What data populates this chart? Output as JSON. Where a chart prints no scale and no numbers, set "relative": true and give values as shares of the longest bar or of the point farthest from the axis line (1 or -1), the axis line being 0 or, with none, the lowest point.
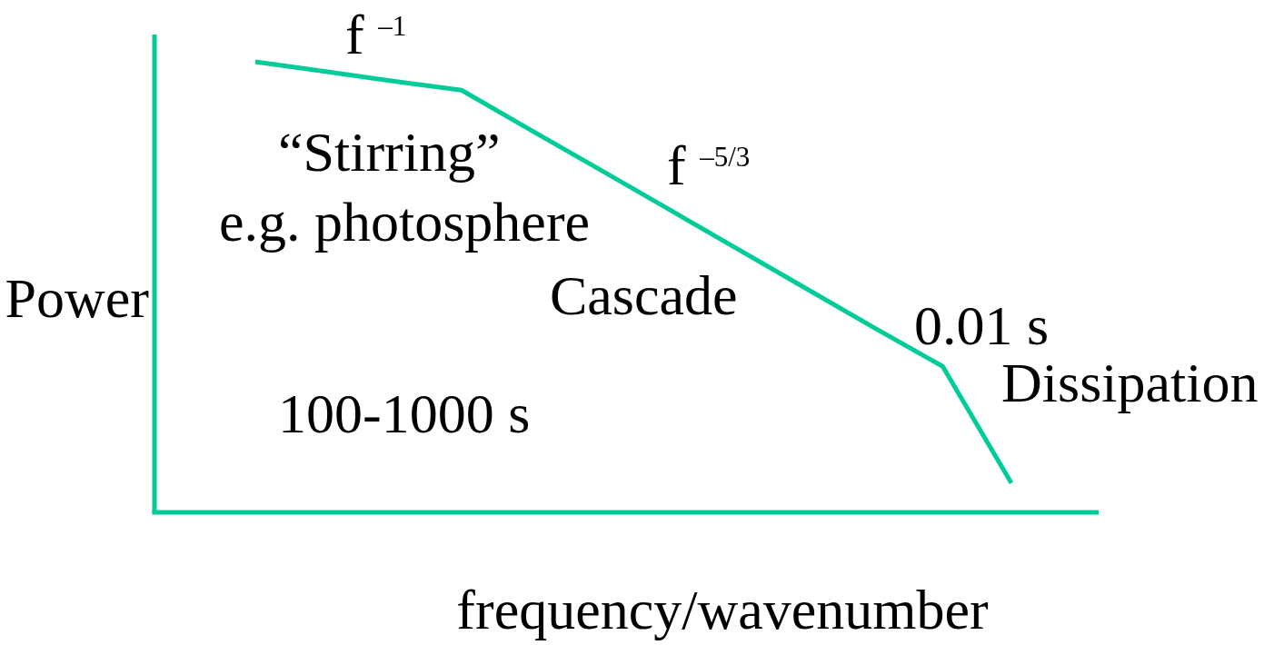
{
  "chart_data": {
    "type": "line",
    "relative": true,
    "xlabel": "frequency/wavenumber",
    "ylabel": "Power",
    "categories": [
      null,
      null,
      null,
      null,
      null,
      null,
      null,
      null,
      null,
      null,
      null,
      null
    ],
    "values": [
      1,
      0.979,
      0.957,
      0.937,
      0.849,
      0.762,
      0.674,
      0.586,
      0.498,
      0.41,
      0.324,
      0.065
    ],
    "color": "#00cc99",
    "annotations": [
      "f $^{–1}$",
      "“Stirring”",
      "e.g. photosphere",
      "f $^{–5/3}$",
      "Cascade",
      "0.01 s",
      "Dissipation",
      "100-1000 s"
    ]
  }
}
